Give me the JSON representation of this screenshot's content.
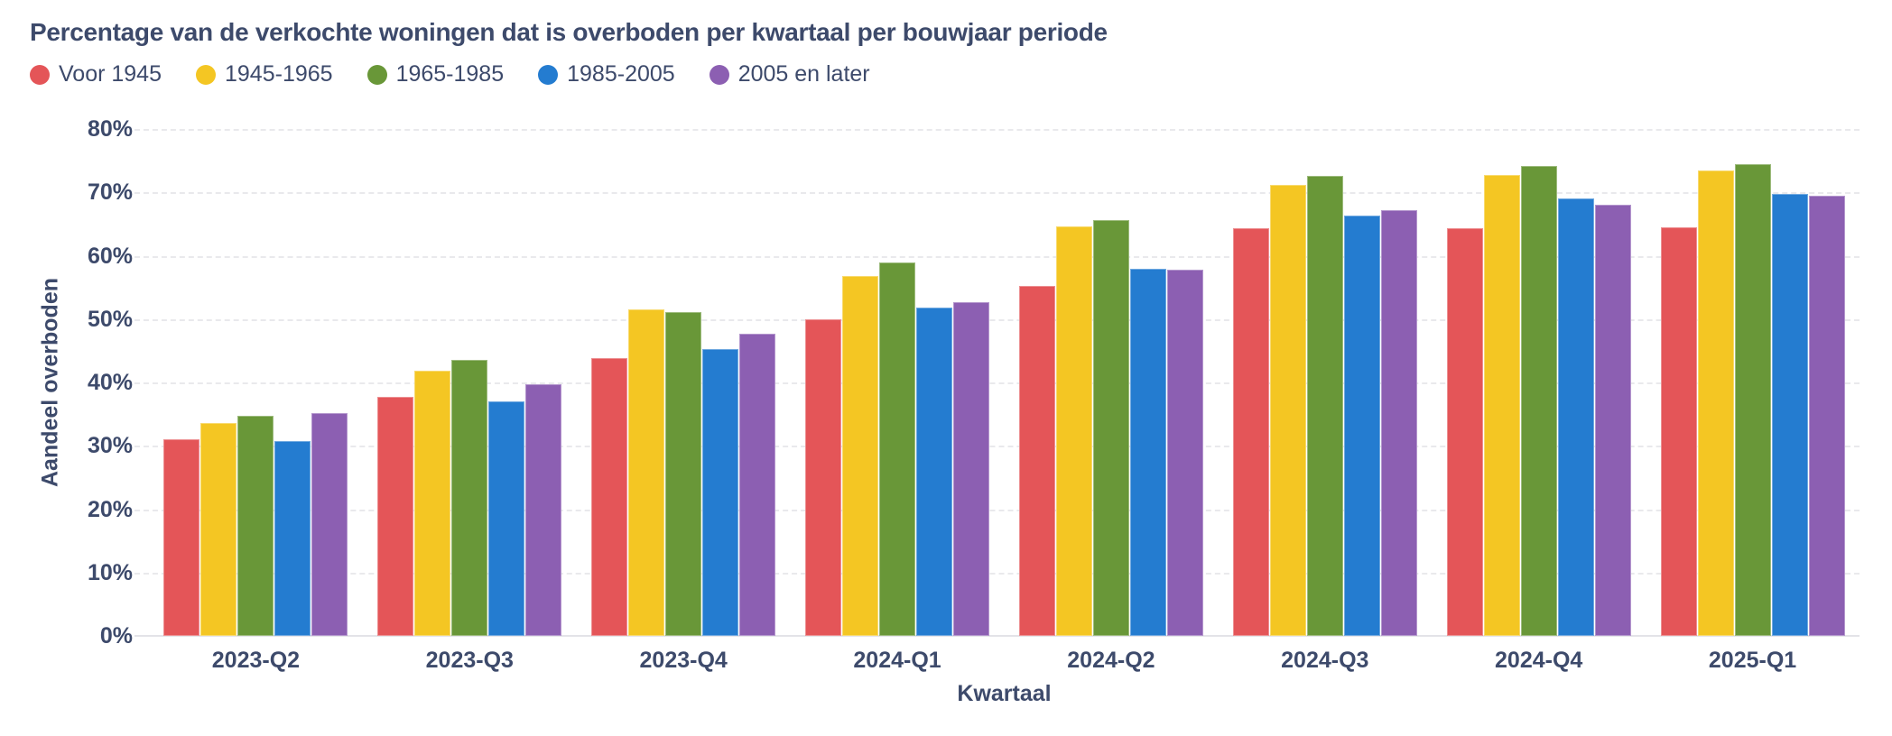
{
  "chart_data": {
    "type": "bar",
    "title": "Percentage van de verkochte woningen dat is overboden per kwartaal per bouwjaar periode",
    "xlabel": "Kwartaal",
    "ylabel": "Aandeel overboden",
    "ylim": [
      0,
      80
    ],
    "ytick_step": 10,
    "ytick_suffix": "%",
    "grid": "horizontal-dashed",
    "legend_position": "top-left",
    "categories": [
      "2023-Q2",
      "2023-Q3",
      "2023-Q4",
      "2024-Q1",
      "2024-Q2",
      "2024-Q3",
      "2024-Q4",
      "2025-Q1"
    ],
    "series": [
      {
        "name": "Voor 1945",
        "color": "#e45558",
        "values": [
          31.0,
          37.7,
          43.9,
          50.0,
          55.3,
          64.4,
          64.4,
          64.5
        ]
      },
      {
        "name": "1945-1965",
        "color": "#f4c623",
        "values": [
          33.6,
          41.8,
          51.5,
          56.8,
          64.6,
          71.2,
          72.7,
          73.5
        ]
      },
      {
        "name": "1965-1985",
        "color": "#699738",
        "values": [
          34.7,
          43.6,
          51.1,
          58.9,
          65.6,
          72.6,
          74.2,
          74.4
        ]
      },
      {
        "name": "1985-2005",
        "color": "#247cd0",
        "values": [
          30.8,
          37.0,
          45.2,
          51.8,
          58.0,
          66.3,
          69.0,
          69.7
        ]
      },
      {
        "name": "2005 en later",
        "color": "#8c5fb2",
        "values": [
          35.1,
          39.7,
          47.7,
          52.7,
          57.8,
          67.2,
          68.1,
          69.5
        ]
      }
    ]
  },
  "colors": {
    "text": "#3d4a6b",
    "grid": "#e9e9ec",
    "baseline": "#e3e3e8",
    "background": "#ffffff"
  }
}
